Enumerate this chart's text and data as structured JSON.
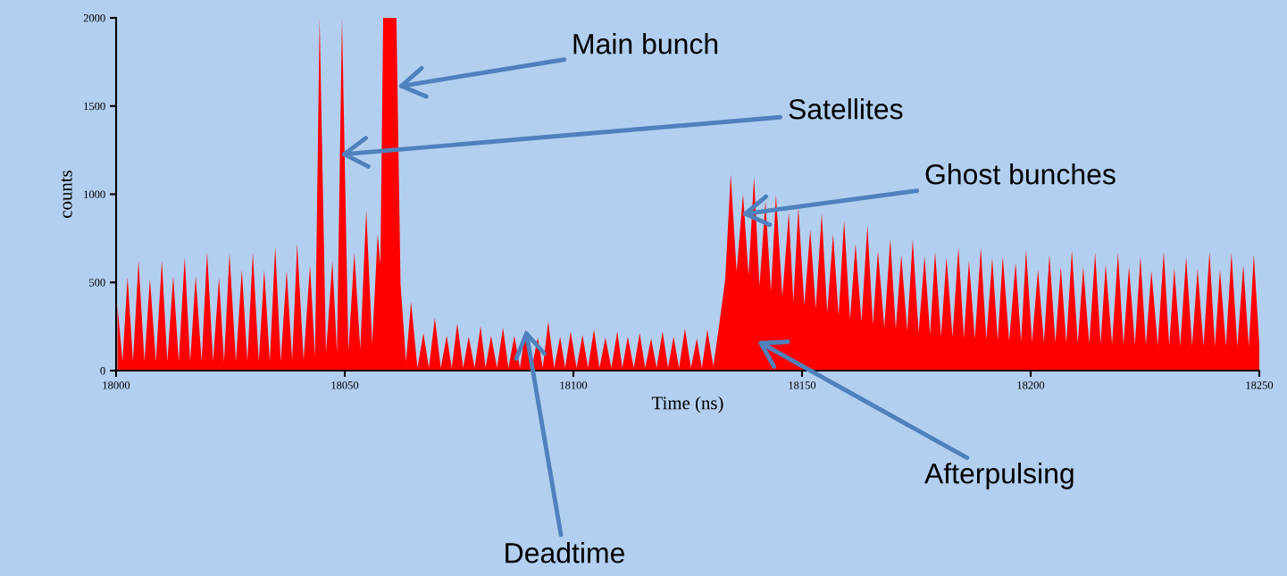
{
  "chart_data": {
    "type": "area",
    "xlabel": "Time (ns)",
    "ylabel": "counts",
    "xlim": [
      18000,
      18250
    ],
    "ylim": [
      0,
      2000
    ],
    "xticks": [
      18000,
      18050,
      18100,
      18150,
      18200,
      18250
    ],
    "yticks": [
      0,
      500,
      1000,
      1500,
      2000
    ],
    "x": [
      18000.3,
      18001.4,
      18002.5,
      18003.7,
      18004.9,
      18006.2,
      18007.4,
      18008.7,
      18010.0,
      18011.2,
      18012.5,
      18013.7,
      18015.0,
      18016.2,
      18017.4,
      18018.7,
      18019.9,
      18021.2,
      18022.5,
      18023.6,
      18024.8,
      18026.2,
      18027.5,
      18028.7,
      18029.9,
      18031.2,
      18032.4,
      18033.6,
      18034.8,
      18036.0,
      18037.3,
      18038.5,
      18039.6,
      18041.0,
      18042.4,
      18043.5,
      18044.5,
      18045.9,
      18047.3,
      18048.3,
      18049.4,
      18050.8,
      18052.1,
      18053.4,
      18054.7,
      18056.0,
      18057.2,
      18057.8,
      18058.4,
      18061.3,
      18062.2,
      18063.4,
      18064.5,
      18065.9,
      18067.2,
      18068.4,
      18069.7,
      18071.0,
      18072.3,
      18073.4,
      18074.6,
      18075.9,
      18077.1,
      18078.4,
      18079.7,
      18080.8,
      18082.0,
      18083.3,
      18084.6,
      18085.8,
      18087.1,
      18088.3,
      18089.6,
      18090.9,
      18092.2,
      18093.3,
      18094.5,
      18095.8,
      18097.1,
      18098.2,
      18099.4,
      18100.7,
      18102.0,
      18103.2,
      18104.5,
      18105.7,
      18107.0,
      18108.3,
      18109.6,
      18110.7,
      18111.9,
      18113.2,
      18114.5,
      18115.7,
      18117.0,
      18118.2,
      18119.5,
      18120.7,
      18121.9,
      18123.1,
      18124.4,
      18125.7,
      18127.0,
      18128.1,
      18129.3,
      18130.6,
      18131.8,
      18133.2,
      18134.4,
      18135.7,
      18137.1,
      18138.3,
      18139.5,
      18140.7,
      18142.0,
      18143.2,
      18144.3,
      18145.7,
      18147.1,
      18148.1,
      18149.2,
      18150.5,
      18151.8,
      18153.0,
      18154.3,
      18155.5,
      18156.8,
      18158.0,
      18159.2,
      18160.5,
      18161.7,
      18163.0,
      18164.3,
      18165.5,
      18166.6,
      18168.0,
      18169.3,
      18170.5,
      18171.7,
      18173.0,
      18174.2,
      18175.5,
      18176.8,
      18178.0,
      18179.1,
      18180.4,
      18181.6,
      18182.9,
      18184.2,
      18185.4,
      18186.5,
      18187.8,
      18189.1,
      18190.3,
      18191.6,
      18192.8,
      18193.9,
      18195.3,
      18196.7,
      18197.9,
      18199.0,
      18200.3,
      18201.6,
      18202.9,
      18204.1,
      18205.4,
      18206.6,
      18207.8,
      18209.0,
      18210.3,
      18211.5,
      18212.8,
      18214.1,
      18215.3,
      18216.4,
      18217.8,
      18219.1,
      18220.3,
      18221.5,
      18222.8,
      18224.0,
      18225.2,
      18226.4,
      18227.8,
      18229.1,
      18230.3,
      18231.4,
      18232.7,
      18234.0,
      18235.3,
      18236.5,
      18237.8,
      18239.1,
      18240.3,
      18241.4,
      18242.7,
      18243.9,
      18245.2,
      18246.5,
      18247.7,
      18248.8,
      18250.0
    ],
    "series": [
      {
        "color": "#ff0000",
        "values": [
          370,
          50,
          530,
          50,
          623,
          50,
          521,
          50,
          623,
          50,
          537,
          50,
          643,
          50,
          537,
          50,
          673,
          50,
          527,
          50,
          663,
          50,
          572,
          50,
          668,
          50,
          572,
          50,
          704,
          50,
          567,
          60,
          719,
          60,
          597,
          80,
          2000,
          100,
          623,
          100,
          2000,
          110,
          668,
          120,
          911,
          150,
          775,
          600,
          2000,
          2000,
          490,
          50,
          390,
          15,
          213,
          15,
          299,
          15,
          197,
          15,
          268,
          15,
          192,
          15,
          253,
          15,
          197,
          15,
          243,
          15,
          197,
          15,
          233,
          15,
          187,
          15,
          278,
          15,
          192,
          15,
          223,
          15,
          202,
          15,
          233,
          15,
          187,
          15,
          223,
          15,
          192,
          15,
          213,
          15,
          182,
          15,
          223,
          15,
          192,
          15,
          238,
          15,
          182,
          15,
          233,
          25,
          243,
          516,
          1114,
          560,
          1003,
          540,
          1099,
          480,
          962,
          450,
          997,
          420,
          896,
          390,
          927,
          370,
          800,
          350,
          891,
          330,
          775,
          310,
          851,
          290,
          719,
          275,
          825,
          260,
          678,
          245,
          749,
          235,
          658,
          225,
          744,
          215,
          648,
          205,
          673,
          195,
          643,
          190,
          699,
          185,
          623,
          180,
          699,
          175,
          638,
          170,
          648,
          168,
          613,
          165,
          684,
          163,
          572,
          160,
          658,
          158,
          587,
          155,
          684,
          153,
          587,
          150,
          668,
          150,
          603,
          148,
          668,
          146,
          592,
          145,
          648,
          143,
          567,
          142,
          673,
          140,
          582,
          140,
          643,
          138,
          577,
          138,
          673,
          137,
          572,
          137,
          668,
          136,
          597,
          136,
          658,
          147
        ]
      }
    ],
    "annotations": [
      {
        "text": "Main bunch",
        "x": 18061.5,
        "y": 1610
      },
      {
        "text": "Satellites",
        "x": 18049.0,
        "y": 1225
      },
      {
        "text": "Ghost bunches",
        "x": 18136.7,
        "y": 886
      },
      "Afterpulsing",
      {
        "text": "Deadtime",
        "x": 18089.6,
        "y": 233
      }
    ]
  }
}
